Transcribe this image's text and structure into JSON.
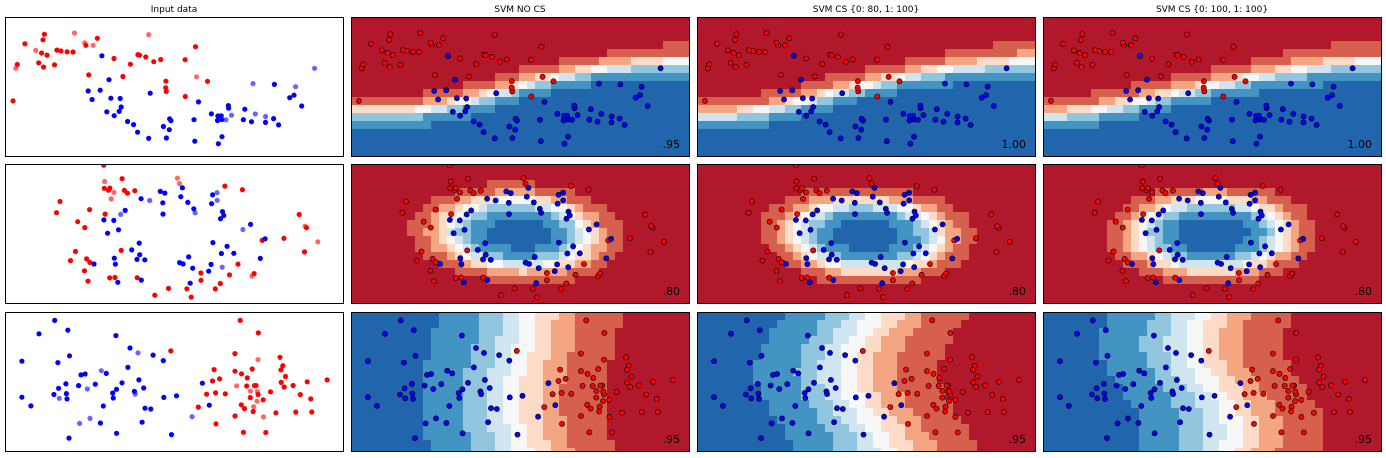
{
  "chart_data": {
    "type": "scatter",
    "column_titles": [
      "Input data",
      "SVM NO CS",
      "SVM CS {0: 80, 1: 100}",
      "SVM CS {0: 100, 1: 100}"
    ],
    "colormap": "RdBu",
    "class_colors": {
      "class_0": "#ff0000",
      "class_1": "#0000ff"
    },
    "rows": [
      {
        "dataset": "moons",
        "scores": [
          ".95",
          "1.00",
          "1.00"
        ]
      },
      {
        "dataset": "circles",
        "scores": [
          ".80",
          ".80",
          ".80"
        ]
      },
      {
        "dataset": "linearly_separable",
        "scores": [
          ".95",
          ".95",
          ".95"
        ]
      }
    ]
  }
}
